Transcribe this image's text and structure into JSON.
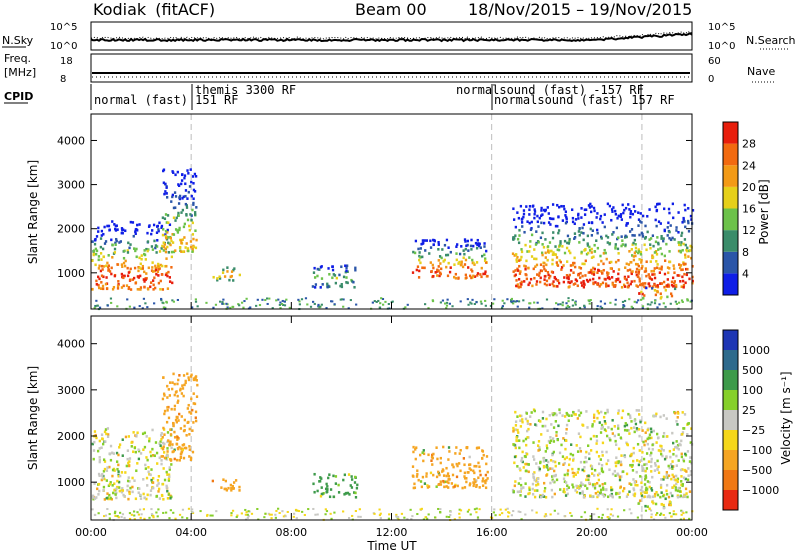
{
  "header": {
    "station": "Kodiak",
    "processing": "(fitACF)",
    "beam": "Beam 00",
    "date_range": "18/Nov/2015 – 19/Nov/2015"
  },
  "panels_top": {
    "nsky_label": "N.Sky",
    "nsky_ticks": [
      "10^5",
      "10^0"
    ],
    "nsearch_label": "N.Search",
    "nsearch_ticks": [
      "10^5",
      "10^0"
    ],
    "freq_label_1": "Freq.",
    "freq_label_2": "[MHz]",
    "freq_ticks": [
      "18",
      "8"
    ],
    "nave_label": "Nave",
    "nave_ticks": [
      "60",
      "0"
    ],
    "cpid_label": "CPID",
    "cpid_segments": [
      {
        "label": "normal (fast) 151 RF",
        "start_h": 0.0,
        "end_h": 4.0
      },
      {
        "label": "themis 3300 RF",
        "start_h": 4.0,
        "end_h": 16.0
      },
      {
        "label": "normalsound (fast) -157 RF",
        "start_h": 16.0,
        "end_h": 22.0
      },
      {
        "label": "normalsound (fast) 157 RF",
        "start_h": 16.0,
        "end_h": 24.0
      }
    ]
  },
  "axes": {
    "ylabel": "Slant Range [km]",
    "yticks": [
      "1000",
      "2000",
      "3000",
      "4000"
    ],
    "xlabel": "Time UT",
    "xticks": [
      "00:00",
      "04:00",
      "08:00",
      "12:00",
      "16:00",
      "20:00",
      "00:00"
    ]
  },
  "colorbars": {
    "power": {
      "label": "Power [dB]",
      "ticks": [
        "4",
        "8",
        "12",
        "16",
        "20",
        "24",
        "28"
      ],
      "colors": [
        "#0f1ee6",
        "#2a55a8",
        "#3a8c6a",
        "#6cc24a",
        "#e6d01a",
        "#f39a16",
        "#f26a10",
        "#e81e0c"
      ]
    },
    "velocity": {
      "label": "Velocity [m s⁻¹]",
      "ticks": [
        "1000",
        "500",
        "100",
        "25",
        "−25",
        "−100",
        "−500",
        "−1000"
      ],
      "colors": [
        "#1e36b4",
        "#2e6a8c",
        "#3d9a4a",
        "#86cf2a",
        "#c8c8c3",
        "#f5d71a",
        "#f5a522",
        "#f07814",
        "#e82a12"
      ]
    }
  },
  "chart_data": [
    {
      "type": "heatmap",
      "title": "Kodiak (fitACF) Beam 00 18/Nov/2015 – 19/Nov/2015",
      "xlabel": "Time UT",
      "ylabel": "Slant Range [km]",
      "xlim": [
        "00:00",
        "24:00"
      ],
      "ylim": [
        180,
        4600
      ],
      "colorbar_label": "Power [dB]",
      "clim": [
        0,
        30
      ],
      "echo_regions": [
        {
          "t0": 0.0,
          "t1": 3.2,
          "r0": 650,
          "r1": 2200,
          "peak_range_km": 900,
          "peak_power_db": 28
        },
        {
          "t0": 2.8,
          "t1": 4.2,
          "r0": 1500,
          "r1": 3400,
          "peak_range_km": 1700,
          "peak_power_db": 20
        },
        {
          "t0": 4.8,
          "t1": 5.9,
          "r0": 850,
          "r1": 1150,
          "peak_range_km": 1000,
          "peak_power_db": 24
        },
        {
          "t0": 8.8,
          "t1": 10.6,
          "r0": 700,
          "r1": 1200,
          "peak_range_km": 900,
          "peak_power_db": 12
        },
        {
          "t0": 12.8,
          "t1": 15.8,
          "r0": 900,
          "r1": 1800,
          "peak_range_km": 1050,
          "peak_power_db": 28
        },
        {
          "t0": 16.8,
          "t1": 24.0,
          "r0": 700,
          "r1": 2600,
          "peak_range_km": 900,
          "peak_power_db": 28
        },
        {
          "t0": 21.8,
          "t1": 23.3,
          "r0": 450,
          "r1": 700,
          "peak_range_km": 550,
          "peak_power_db": 28
        }
      ]
    },
    {
      "type": "heatmap",
      "xlabel": "Time UT",
      "ylabel": "Slant Range [km]",
      "xlim": [
        "00:00",
        "24:00"
      ],
      "ylim": [
        180,
        4600
      ],
      "colorbar_label": "Velocity [m s⁻¹]",
      "clim": [
        -1000,
        1000
      ],
      "echo_regions": [
        {
          "t0": 0.0,
          "t1": 3.2,
          "r0": 650,
          "r1": 2200,
          "dominant_velocity": 0
        },
        {
          "t0": 2.8,
          "t1": 4.2,
          "r0": 1500,
          "r1": 3400,
          "dominant_velocity": -300
        },
        {
          "t0": 4.8,
          "t1": 5.9,
          "r0": 850,
          "r1": 1150,
          "dominant_velocity": -200
        },
        {
          "t0": 8.8,
          "t1": 10.6,
          "r0": 700,
          "r1": 1200,
          "dominant_velocity": 150
        },
        {
          "t0": 12.8,
          "t1": 15.8,
          "r0": 900,
          "r1": 1800,
          "dominant_velocity": -200
        },
        {
          "t0": 16.8,
          "t1": 24.0,
          "r0": 700,
          "r1": 2600,
          "dominant_velocity": 0
        },
        {
          "t0": 21.8,
          "t1": 23.3,
          "r0": 450,
          "r1": 700,
          "dominant_velocity": 0
        }
      ]
    }
  ]
}
